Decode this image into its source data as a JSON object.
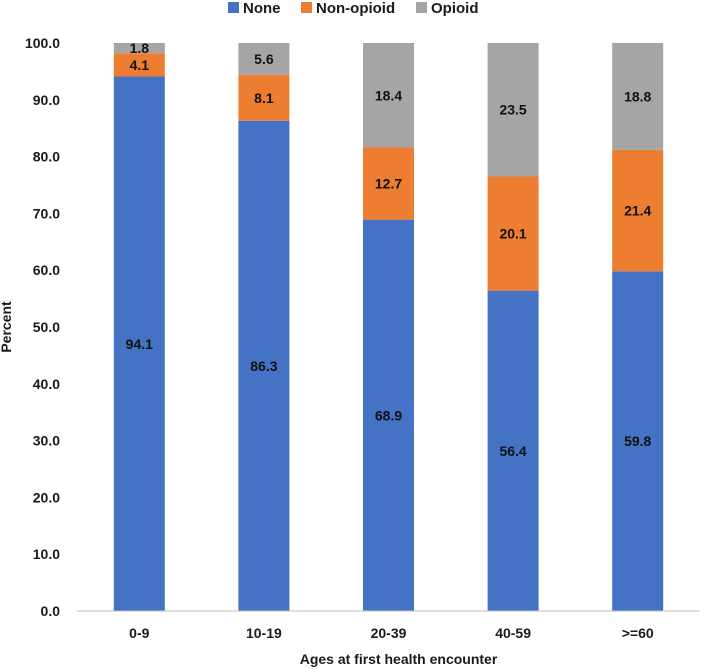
{
  "chart_data": {
    "type": "bar",
    "stacked": true,
    "title": "",
    "xlabel": "Ages at first health encounter",
    "ylabel": "Percent",
    "ylim": [
      0,
      100
    ],
    "yticks": [
      "0.0",
      "10.0",
      "20.0",
      "30.0",
      "40.0",
      "50.0",
      "60.0",
      "70.0",
      "80.0",
      "90.0",
      "100.0"
    ],
    "categories": [
      "0-9",
      "10-19",
      "20-39",
      "40-59",
      ">=60"
    ],
    "legend_position": "top",
    "series": [
      {
        "name": "None",
        "color": "#4472C4",
        "values": [
          94.1,
          86.3,
          68.9,
          56.4,
          59.8
        ],
        "labels": [
          "94.1",
          "86.3",
          "68.9",
          "56.4",
          "59.8"
        ]
      },
      {
        "name": "Non-opioid",
        "color": "#ED7D31",
        "values": [
          4.1,
          8.1,
          12.7,
          20.1,
          21.4
        ],
        "labels": [
          "4.1",
          "8.1",
          "12.7",
          "20.1",
          "21.4"
        ]
      },
      {
        "name": "Opioid",
        "color": "#A5A5A5",
        "values": [
          1.8,
          5.6,
          18.4,
          23.5,
          18.8
        ],
        "labels": [
          "1.8",
          "5.6",
          "18.4",
          "23.5",
          "18.8"
        ]
      }
    ]
  }
}
